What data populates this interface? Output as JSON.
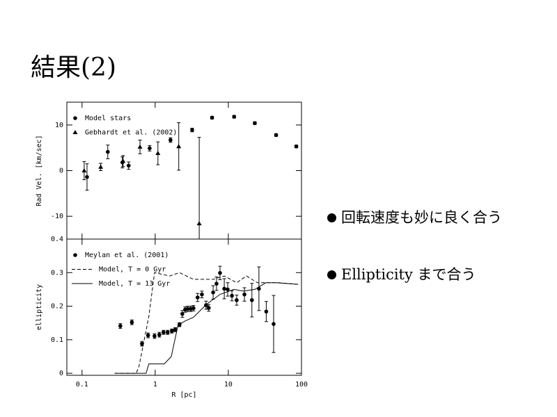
{
  "slide": {
    "title": "結果(2)",
    "bullets": [
      "回転速度も妙に良く合う",
      "Ellipticity まで合う"
    ]
  },
  "chart_data": [
    {
      "type": "scatter",
      "y_label": "Rad Vel. [km/sec]",
      "log_x": true,
      "xlim": [
        0.062,
        100
      ],
      "xticks": [
        0.1,
        1,
        10,
        100
      ],
      "ylim": [
        -15,
        15
      ],
      "yticks": [
        -10,
        0,
        10
      ],
      "legend": "upper-left",
      "series": [
        {
          "name": "Model stars",
          "color": "#000000",
          "marker": "circle",
          "x": [
            0.117,
            0.225,
            0.356,
            0.434,
            0.84,
            1.62,
            3.2,
            6.0,
            12.0,
            23,
            45,
            85
          ],
          "values": [
            -1.4,
            4.1,
            1.8,
            1.1,
            4.9,
            6.7,
            8.9,
            11.6,
            11.8,
            10.4,
            7.8,
            5.3
          ],
          "errors": [
            2.9,
            1.5,
            1.2,
            0.8,
            0.6,
            0.5,
            0.4,
            0.3,
            0.3,
            0.3,
            0.3,
            0.3
          ]
        },
        {
          "name": "Gebhardt et al. (2002)",
          "color": "#000000",
          "marker": "triangle",
          "x": [
            0.107,
            0.18,
            0.364,
            0.62,
            1.09,
            2.1,
            4.0
          ],
          "values": [
            0,
            0.8,
            2.1,
            5.2,
            3.8,
            5.3,
            -11.6
          ],
          "errors": [
            2,
            0.8,
            1.2,
            1.5,
            2.5,
            5.2,
            18.9
          ]
        }
      ]
    },
    {
      "type": "scatter",
      "x_label": "R [pc]",
      "y_label": "ellipticity",
      "log_x": true,
      "xlim": [
        0.062,
        100
      ],
      "xticks": [
        0.1,
        1,
        10,
        100
      ],
      "ylim": [
        -0.006,
        0.4
      ],
      "yticks": [
        0,
        0.1,
        0.2,
        0.3,
        0.4
      ],
      "legend": "upper-left",
      "series": [
        {
          "name": "Meylan et al. (2001)",
          "color": "#000000",
          "marker": "circle",
          "x": [
            0.334,
            0.48,
            0.66,
            0.8,
            0.98,
            1.14,
            1.3,
            1.48,
            1.69,
            1.88,
            2.15,
            2.35,
            2.57,
            2.8,
            3.06,
            3.34,
            3.8,
            4.35,
            4.96,
            5.4,
            6.2,
            6.9,
            7.7,
            8.8,
            9.8,
            11.2,
            13.0,
            16.6,
            21,
            26.2,
            33,
            41.6
          ],
          "values": [
            0.141,
            0.152,
            0.088,
            0.113,
            0.111,
            0.115,
            0.122,
            0.122,
            0.126,
            0.13,
            0.145,
            0.177,
            0.19,
            0.192,
            0.192,
            0.194,
            0.226,
            0.235,
            0.203,
            0.195,
            0.241,
            0.267,
            0.299,
            0.252,
            0.25,
            0.231,
            0.218,
            0.235,
            0.218,
            0.252,
            0.184,
            0.147
          ],
          "errors": [
            0.007,
            0.007,
            0.007,
            0.007,
            0.007,
            0.007,
            0.006,
            0.006,
            0.006,
            0.006,
            0.006,
            0.01,
            0.008,
            0.008,
            0.008,
            0.008,
            0.012,
            0.01,
            0.012,
            0.01,
            0.02,
            0.02,
            0.02,
            0.03,
            0.02,
            0.015,
            0.015,
            0.02,
            0.05,
            0.065,
            0.03,
            0.085
          ]
        },
        {
          "name": "Model, T = 0 Gyr",
          "color": "#000000",
          "line_style": "dashed",
          "x": [
            0.28,
            0.55,
            0.6,
            0.82,
            0.98,
            1.58,
            2.15,
            3.34,
            6.2,
            8.8,
            13,
            17.7,
            25,
            48.5,
            90
          ],
          "values": [
            0,
            0,
            0.02,
            0.17,
            0.3,
            0.29,
            0.3,
            0.28,
            0.28,
            0.29,
            0.27,
            0.29,
            0.27,
            0.27,
            0.265
          ]
        },
        {
          "name": "Model, T = 13 Gyr",
          "color": "#000000",
          "line_style": "solid",
          "x": [
            0.28,
            0.75,
            0.82,
            1.33,
            1.66,
            2.05,
            2.57,
            3.34,
            5,
            7.7,
            11.9,
            16.1,
            23,
            32.7,
            44.6,
            90
          ],
          "values": [
            0,
            0,
            0.028,
            0.028,
            0.05,
            0.143,
            0.156,
            0.167,
            0.205,
            0.235,
            0.25,
            0.245,
            0.25,
            0.27,
            0.27,
            0.265
          ]
        }
      ]
    }
  ]
}
